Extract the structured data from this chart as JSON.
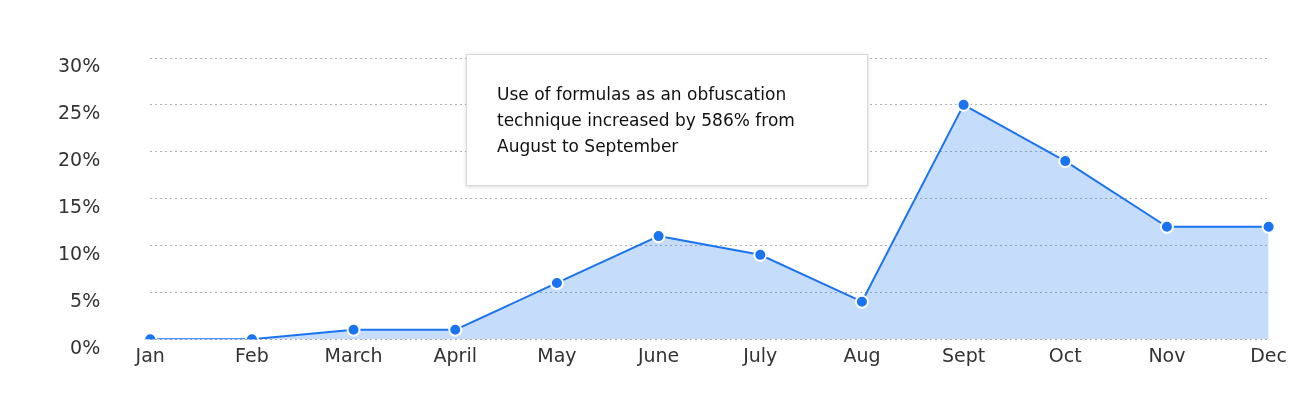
{
  "chart_data": {
    "type": "area",
    "categories": [
      "Jan",
      "Feb",
      "March",
      "April",
      "May",
      "June",
      "July",
      "Aug",
      "Sept",
      "Oct",
      "Nov",
      "Dec"
    ],
    "series": [
      {
        "color": "#1a73f0",
        "values": [
          0,
          0,
          1,
          1,
          6,
          11,
          9,
          4,
          25,
          19,
          12,
          12
        ]
      }
    ],
    "ylim": [
      0,
      30
    ],
    "yticks": [
      {
        "value": 0,
        "label": "0%"
      },
      {
        "value": 5,
        "label": "5%"
      },
      {
        "value": 10,
        "label": "10%"
      },
      {
        "value": 15,
        "label": "15%"
      },
      {
        "value": 20,
        "label": "20%"
      },
      {
        "value": 25,
        "label": "25%"
      },
      {
        "value": 30,
        "label": "30%"
      }
    ],
    "grid": "y",
    "marker": "circle",
    "legend": false,
    "annotations": [
      "Use of formulas as an obfuscation technique increased by 586% from August to September"
    ]
  }
}
